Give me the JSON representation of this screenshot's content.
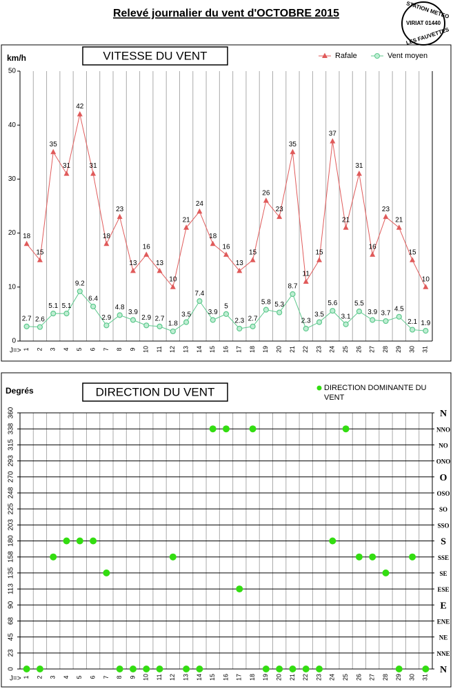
{
  "page": {
    "title": "Relevé journalier du vent d'OCTOBRE 2015",
    "stamp": [
      "STATION METEO",
      "VIRIAT 01440",
      "LES FAUVETTES"
    ]
  },
  "chart_data": [
    {
      "type": "line",
      "title": "VITESSE DU VENT",
      "y_label": "km/h",
      "x_label": "J=>",
      "categories": [
        "1",
        "2",
        "3",
        "4",
        "5",
        "6",
        "7",
        "8",
        "9",
        "10",
        "11",
        "12",
        "13",
        "14",
        "15",
        "16",
        "17",
        "18",
        "19",
        "20",
        "21",
        "22",
        "23",
        "24",
        "25",
        "26",
        "27",
        "28",
        "29",
        "30",
        "31"
      ],
      "series": [
        {
          "name": "Rafale",
          "color": "#e05a5a",
          "marker": "triangle",
          "values": [
            18,
            15,
            35,
            31,
            42,
            31,
            18,
            23,
            13,
            16,
            13,
            10,
            21,
            24,
            18,
            16,
            13,
            15,
            26,
            23,
            35,
            11,
            15,
            37,
            21,
            31,
            16,
            23,
            21,
            15,
            10
          ]
        },
        {
          "name": "Vent moyen",
          "color": "#5cc88c",
          "marker": "circle",
          "values": [
            2.7,
            2.6,
            5.1,
            5.1,
            9.2,
            6.4,
            2.9,
            4.8,
            3.9,
            2.9,
            2.7,
            1.8,
            3.5,
            7.4,
            3.9,
            5,
            2.3,
            2.7,
            5.8,
            5.3,
            8.7,
            2.3,
            3.5,
            5.6,
            3.1,
            5.5,
            3.9,
            3.7,
            4.5,
            2.1,
            1.9
          ]
        }
      ],
      "ylim": [
        0,
        50
      ],
      "yticks": [
        0,
        10,
        20,
        30,
        40,
        50
      ],
      "legend": "top-right"
    },
    {
      "type": "scatter",
      "title": "DIRECTION DU VENT",
      "y_label": "Degrés",
      "x_label": "J=>",
      "categories": [
        "1",
        "2",
        "3",
        "4",
        "5",
        "6",
        "7",
        "8",
        "9",
        "10",
        "11",
        "12",
        "13",
        "14",
        "15",
        "16",
        "17",
        "18",
        "19",
        "20",
        "21",
        "22",
        "23",
        "24",
        "25",
        "26",
        "27",
        "28",
        "29",
        "30",
        "31"
      ],
      "series": [
        {
          "name": "DIRECTION DOMINANTE DU VENT",
          "color": "#33dd11",
          "values": [
            0,
            0,
            157.5,
            180,
            180,
            180,
            135,
            0,
            0,
            0,
            0,
            157.5,
            0,
            0,
            337.5,
            337.5,
            112.5,
            337.5,
            0,
            0,
            0,
            0,
            0,
            180,
            337.5,
            157.5,
            157.5,
            135,
            0,
            157.5,
            0
          ]
        }
      ],
      "ylim": [
        0,
        360
      ],
      "yticks": [
        0,
        {
          "value": 22.5,
          "label": "23"
        },
        45,
        {
          "value": 67.5,
          "label": "68"
        },
        90,
        {
          "value": 112.5,
          "label": "113"
        },
        135,
        {
          "value": 157.5,
          "label": "158"
        },
        180,
        {
          "value": 202.5,
          "label": "203"
        },
        225,
        {
          "value": 247.5,
          "label": "248"
        },
        270,
        {
          "value": 292.5,
          "label": "293"
        },
        315,
        {
          "value": 337.5,
          "label": "338"
        },
        360
      ],
      "y2lim": [
        0,
        360
      ],
      "y2ticks": [
        {
          "value": 0,
          "label": "N"
        },
        {
          "value": 22.5,
          "label": "NNE"
        },
        {
          "value": 45,
          "label": "NE"
        },
        {
          "value": 67.5,
          "label": "ENE"
        },
        {
          "value": 90,
          "label": "E"
        },
        {
          "value": 112.5,
          "label": "ESE"
        },
        {
          "value": 135,
          "label": "SE"
        },
        {
          "value": 157.5,
          "label": "SSE"
        },
        {
          "value": 180,
          "label": "S"
        },
        {
          "value": 202.5,
          "label": "SSO"
        },
        {
          "value": 225,
          "label": "SO"
        },
        {
          "value": 247.5,
          "label": "OSO"
        },
        {
          "value": 270,
          "label": "O"
        },
        {
          "value": 292.5,
          "label": "ONO"
        },
        {
          "value": 315,
          "label": "NO"
        },
        {
          "value": 337.5,
          "label": "NNO"
        },
        {
          "value": 360,
          "label": "N"
        }
      ],
      "grid": true,
      "legend": "top-right"
    }
  ]
}
